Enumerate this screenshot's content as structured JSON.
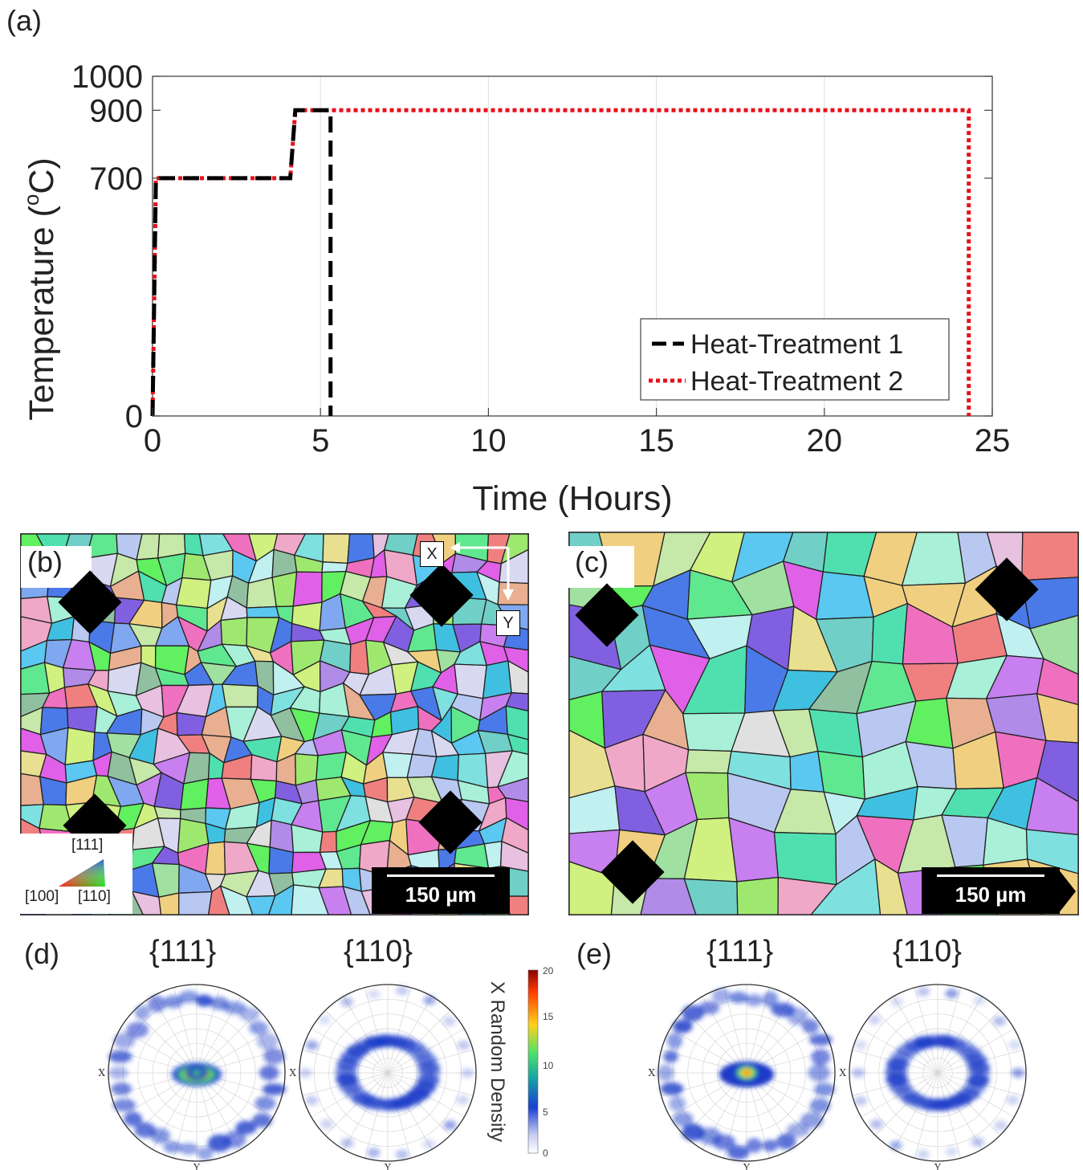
{
  "panels": {
    "a": "(a)",
    "b": "(b)",
    "c": "(c)",
    "d": "(d)",
    "e": "(e)"
  },
  "chart_data": {
    "type": "line",
    "xlabel": "Time (Hours)",
    "ylabel": "Temperature (°C)",
    "ylabel_base": "Temperature (",
    "ylabel_sup": "o",
    "ylabel_end": "C)",
    "xlim": [
      0,
      25
    ],
    "ylim": [
      0,
      1000
    ],
    "xticks": [
      0,
      5,
      10,
      15,
      20,
      25
    ],
    "yticks": [
      0,
      700,
      900,
      1000
    ],
    "grid": "vertical",
    "legend_position": "bottom-right",
    "series": [
      {
        "name": "Heat-Treatment 1",
        "color": "#000000",
        "style": "dashed",
        "x": [
          0,
          0.1,
          4.1,
          4.25,
          5.3,
          5.3
        ],
        "y": [
          0,
          700,
          700,
          900,
          900,
          0
        ]
      },
      {
        "name": "Heat-Treatment 2",
        "color": "#e8101a",
        "style": "dotted",
        "x": [
          0,
          0.1,
          4.1,
          4.25,
          24.3,
          24.3
        ],
        "y": [
          0,
          700,
          700,
          900,
          900,
          0
        ]
      }
    ]
  },
  "ebsd": {
    "b": {
      "scale_bar": "150 µm",
      "axis_x": "X",
      "axis_y": "Y",
      "ipf_111": "[111]",
      "ipf_100": "[100]",
      "ipf_110": "[110]"
    },
    "c": {
      "scale_bar": "150 µm"
    }
  },
  "pole_figures": {
    "d": [
      {
        "title": "{111}",
        "x_label": "X",
        "y_label": "Y"
      },
      {
        "title": "{110}",
        "x_label": "X",
        "y_label": "Y"
      }
    ],
    "e": [
      {
        "title": "{111}",
        "x_label": "X",
        "y_label": "Y"
      },
      {
        "title": "{110}",
        "x_label": "X",
        "y_label": "Y"
      }
    ]
  },
  "colorbar": {
    "label": "X Random Density",
    "ticks": [
      "20",
      "15",
      "10",
      "5",
      "0"
    ],
    "colors": [
      "#8b0000",
      "#ff3b00",
      "#ffd21a",
      "#52e06a",
      "#18a8a0",
      "#1a40d0",
      "#c7cdf3",
      "#ffffff"
    ]
  }
}
